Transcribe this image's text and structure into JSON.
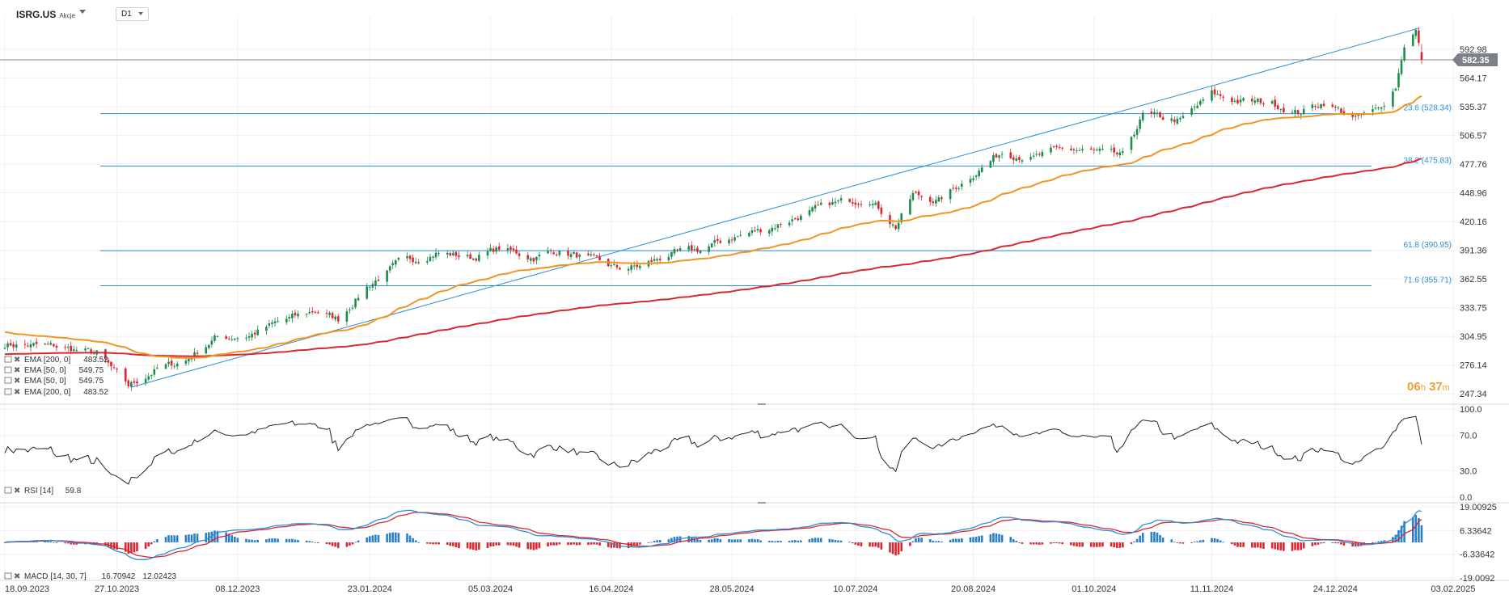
{
  "header": {
    "symbol": "ISRG.US",
    "symbol_sub": "Akcje",
    "timeframe": "D1"
  },
  "countdown": {
    "hours": "06",
    "hours_unit": "h",
    "minutes": "37",
    "minutes_unit": "m"
  },
  "colors": {
    "up": "#1e8c4a",
    "down": "#d9282f",
    "ema50": "#f29422",
    "ema200": "#d9282f",
    "fib": "#2a8fd6",
    "channel": "#2a8fd6",
    "price_line": "#888888",
    "macd_line": "#2a8fd6",
    "signal_line": "#d9282f",
    "hist_pos": "#2a7fc7",
    "hist_neg": "#d9282f",
    "grid": "#eef0f3",
    "axis_text": "#333333"
  },
  "chart_data": [
    {
      "type": "candlestick",
      "title": "",
      "ylim": [
        237,
        618
      ],
      "y_ticks": [
        "592.98",
        "564.17",
        "535.37",
        "506.57",
        "477.76",
        "448.96",
        "420.16",
        "391.36",
        "362.55",
        "333.75",
        "304.95",
        "276.14",
        "247.34"
      ],
      "x_ticks": [
        "18.09.2023",
        "27.10.2023",
        "08.12.2023",
        "23.01.2024",
        "05.03.2024",
        "16.04.2024",
        "28.05.2024",
        "10.07.2024",
        "20.08.2024",
        "01.10.2024",
        "11.11.2024",
        "24.12.2024",
        "03.02.2025"
      ],
      "x_range": [
        "2023-09-18",
        "2025-02-03"
      ],
      "last_price": {
        "value": 582.35,
        "label": "582.35"
      },
      "fib_levels": [
        {
          "value": 528.34,
          "label": "23.6 (528.34)"
        },
        {
          "value": 475.83,
          "label": "38.2 (475.83)"
        },
        {
          "value": 390.95,
          "label": "61.8 (390.95)"
        },
        {
          "value": 355.71,
          "label": "71.6 (355.71)"
        }
      ],
      "trend_line": [
        {
          "date": "2023-11-01",
          "price": 254
        },
        {
          "date": "2025-01-22",
          "price": 614
        }
      ],
      "price_path": [
        [
          "2023-09-18",
          297
        ],
        [
          "2023-10-05",
          295
        ],
        [
          "2023-10-20",
          288
        ],
        [
          "2023-10-31",
          255
        ],
        [
          "2023-11-10",
          272
        ],
        [
          "2023-11-20",
          281
        ],
        [
          "2023-11-30",
          303
        ],
        [
          "2023-12-12",
          306
        ],
        [
          "2023-12-22",
          319
        ],
        [
          "2024-01-04",
          331
        ],
        [
          "2024-01-12",
          322
        ],
        [
          "2024-01-22",
          355
        ],
        [
          "2024-02-02",
          378
        ],
        [
          "2024-02-15",
          389
        ],
        [
          "2024-02-28",
          384
        ],
        [
          "2024-03-08",
          393
        ],
        [
          "2024-03-20",
          384
        ],
        [
          "2024-03-28",
          391
        ],
        [
          "2024-04-08",
          383
        ],
        [
          "2024-04-18",
          373
        ],
        [
          "2024-04-26",
          375
        ],
        [
          "2024-05-06",
          387
        ],
        [
          "2024-05-17",
          392
        ],
        [
          "2024-05-28",
          404
        ],
        [
          "2024-06-10",
          414
        ],
        [
          "2024-06-21",
          426
        ],
        [
          "2024-07-02",
          438
        ],
        [
          "2024-07-15",
          444
        ],
        [
          "2024-07-24",
          415
        ],
        [
          "2024-07-30",
          447
        ],
        [
          "2024-08-08",
          441
        ],
        [
          "2024-08-20",
          468
        ],
        [
          "2024-08-30",
          490
        ],
        [
          "2024-09-10",
          484
        ],
        [
          "2024-09-20",
          493
        ],
        [
          "2024-10-01",
          490
        ],
        [
          "2024-10-11",
          485
        ],
        [
          "2024-10-18",
          527
        ],
        [
          "2024-10-31",
          521
        ],
        [
          "2024-11-11",
          548
        ],
        [
          "2024-11-20",
          541
        ],
        [
          "2024-12-02",
          539
        ],
        [
          "2024-12-11",
          529
        ],
        [
          "2024-12-20",
          540
        ],
        [
          "2024-12-31",
          523
        ],
        [
          "2025-01-08",
          532
        ],
        [
          "2025-01-14",
          556
        ],
        [
          "2025-01-17",
          598
        ],
        [
          "2025-01-21",
          612
        ],
        [
          "2025-01-23",
          582
        ]
      ],
      "series": [
        {
          "name": "EMA [50, 0]",
          "value": "549.75",
          "seed": 310
        },
        {
          "name": "EMA [200, 0]",
          "value": "483.52",
          "seed": 287
        }
      ]
    },
    {
      "type": "line",
      "title": "",
      "ylim": [
        0,
        100
      ],
      "y_ticks": [
        "100.0",
        "70.0",
        "30.0",
        "0.0"
      ],
      "levels": [
        100,
        70,
        30,
        0
      ],
      "series": [
        {
          "name": "RSI [14]",
          "value": "59.8"
        }
      ]
    },
    {
      "type": "bar",
      "title": "",
      "ylim": [
        -19.0092,
        19.00925
      ],
      "y_ticks": [
        "19.00925",
        "6.33642",
        "-6.33642",
        "-19.0092"
      ],
      "levels": [
        19.00925,
        6.33642,
        -6.33642,
        -19.0092
      ],
      "series": [
        {
          "name": "MACD [14, 30, 7]",
          "macd": "16.70942",
          "signal": "12.02423"
        }
      ]
    }
  ]
}
